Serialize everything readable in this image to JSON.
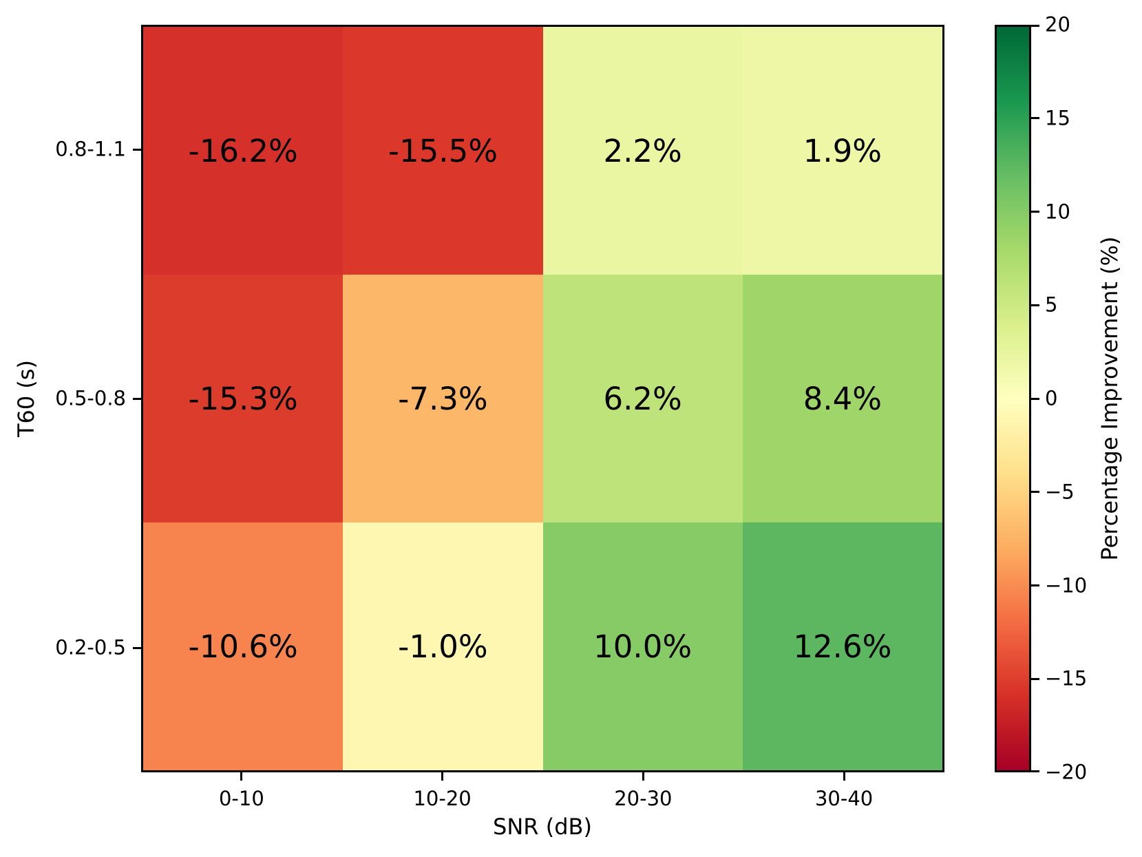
{
  "chart_data": {
    "type": "heatmap",
    "xlabel": "SNR (dB)",
    "ylabel": "T60 (s)",
    "x_categories": [
      "0-10",
      "10-20",
      "20-30",
      "30-40"
    ],
    "y_categories": [
      "0.8-1.1",
      "0.5-0.8",
      "0.2-0.5"
    ],
    "rows": [
      {
        "y_label": "0.8-1.1",
        "values": [
          -16.2,
          -15.5,
          2.2,
          1.9
        ],
        "labels": [
          "-16.2%",
          "-15.5%",
          "2.2%",
          "1.9%"
        ],
        "colors": [
          "#d5312a",
          "#db382b",
          "#eaf6a2",
          "#edf7a6"
        ]
      },
      {
        "y_label": "0.5-0.8",
        "values": [
          -15.3,
          -7.3,
          6.2,
          8.4
        ],
        "labels": [
          "-15.3%",
          "-7.3%",
          "6.2%",
          "8.4%"
        ],
        "colors": [
          "#dc3c2c",
          "#fdb768",
          "#bde37a",
          "#a0d669"
        ]
      },
      {
        "y_label": "0.2-0.5",
        "values": [
          -10.6,
          -1.0,
          10.0,
          12.6
        ],
        "labels": [
          "-10.6%",
          "-1.0%",
          "10.0%",
          "12.6%"
        ],
        "colors": [
          "#f7844e",
          "#fef7b1",
          "#87cb67",
          "#5cb760"
        ]
      }
    ],
    "colorbar": {
      "label": "Percentage Improvement (%)",
      "vmin": -20,
      "vmax": 20,
      "tick_values": [
        20,
        15,
        10,
        5,
        0,
        -5,
        -10,
        -15,
        -20
      ],
      "tick_labels": [
        "20",
        "15",
        "10",
        "5",
        "0",
        "−5",
        "−10",
        "−15",
        "−20"
      ],
      "colormap": "RdYlGn",
      "gradient_top_to_bottom": [
        "#006837",
        "#1a9850",
        "#66bd63",
        "#a6d96a",
        "#d9ef8b",
        "#ffffbf",
        "#fee08b",
        "#fdae61",
        "#f46d43",
        "#d73027",
        "#a50026"
      ]
    },
    "cell_text_color": "#000000",
    "axis_color": "#000000",
    "background": "#ffffff",
    "grid": false,
    "legend": false
  }
}
